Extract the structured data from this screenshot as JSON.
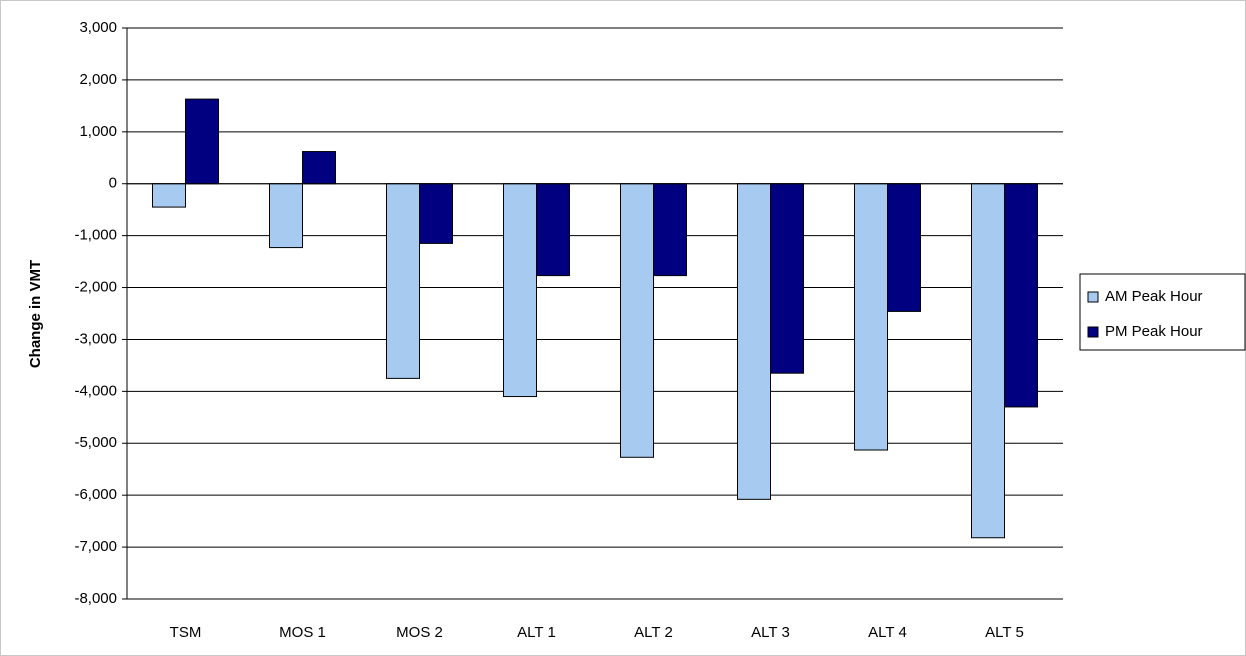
{
  "chart_data": {
    "type": "bar",
    "y_label": "Change in VMT",
    "categories": [
      "TSM",
      "MOS 1",
      "MOS 2",
      "ALT 1",
      "ALT 2",
      "ALT 3",
      "ALT 4",
      "ALT 5"
    ],
    "series": [
      {
        "name": "AM Peak Hour",
        "color": "#a6caf0",
        "values": [
          -450,
          -1230,
          -3750,
          -4100,
          -5270,
          -6080,
          -5130,
          -6820
        ]
      },
      {
        "name": "PM Peak Hour",
        "color": "#000080",
        "values": [
          1630,
          620,
          -1150,
          -1770,
          -1770,
          -3650,
          -2460,
          -4300
        ]
      }
    ],
    "ylim": [
      -8000,
      3000
    ],
    "yticks": [
      {
        "value": -8000,
        "label": "-8,000"
      },
      {
        "value": -7000,
        "label": "-7,000"
      },
      {
        "value": -6000,
        "label": "-6,000"
      },
      {
        "value": -5000,
        "label": "-5,000"
      },
      {
        "value": -4000,
        "label": "-4,000"
      },
      {
        "value": -3000,
        "label": "-3,000"
      },
      {
        "value": -2000,
        "label": "-2,000"
      },
      {
        "value": -1000,
        "label": "-1,000"
      },
      0,
      {
        "value": 1000,
        "label": "1,000"
      },
      {
        "value": 2000,
        "label": "2,000"
      },
      {
        "value": 3000,
        "label": "3,000"
      }
    ],
    "grid": true,
    "legend": "right"
  }
}
